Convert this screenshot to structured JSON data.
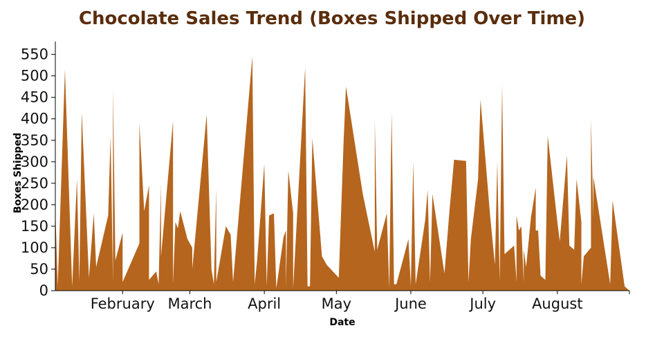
{
  "chart_data": {
    "type": "area",
    "title": "Chocolate Sales Trend (Boxes Shipped Over Time)",
    "xlabel": "Date",
    "ylabel": "Boxes Shipped",
    "color": "#b5651d",
    "title_color": "#5a2d0c",
    "xlim": [
      "2022-01-04",
      "2022-08-31"
    ],
    "ylim": [
      0,
      580
    ],
    "y_ticks": [
      0,
      50,
      100,
      150,
      200,
      250,
      300,
      350,
      400,
      450,
      500,
      550
    ],
    "x_ticks": [
      {
        "date": "2022-02-01",
        "label": "February"
      },
      {
        "date": "2022-03-01",
        "label": "March"
      },
      {
        "date": "2022-04-01",
        "label": "April"
      },
      {
        "date": "2022-05-01",
        "label": "May"
      },
      {
        "date": "2022-06-01",
        "label": "June"
      },
      {
        "date": "2022-07-01",
        "label": "July"
      },
      {
        "date": "2022-08-01",
        "label": "August"
      }
    ],
    "points": [
      [
        "2022-01-04",
        190
      ],
      [
        "2022-01-05",
        10
      ],
      [
        "2022-01-08",
        515
      ],
      [
        "2022-01-11",
        10
      ],
      [
        "2022-01-13",
        260
      ],
      [
        "2022-01-14",
        20
      ],
      [
        "2022-01-15",
        415
      ],
      [
        "2022-01-18",
        30
      ],
      [
        "2022-01-20",
        180
      ],
      [
        "2022-01-21",
        55
      ],
      [
        "2022-01-26",
        175
      ],
      [
        "2022-01-27",
        360
      ],
      [
        "2022-01-28",
        20
      ],
      [
        "2022-01-28",
        470
      ],
      [
        "2022-01-29",
        70
      ],
      [
        "2022-02-01",
        135
      ],
      [
        "2022-02-01",
        20
      ],
      [
        "2022-02-08",
        110
      ],
      [
        "2022-02-08",
        390
      ],
      [
        "2022-02-10",
        185
      ],
      [
        "2022-02-12",
        245
      ],
      [
        "2022-02-12",
        25
      ],
      [
        "2022-02-15",
        45
      ],
      [
        "2022-02-16",
        15
      ],
      [
        "2022-02-17",
        250
      ],
      [
        "2022-02-17",
        80
      ],
      [
        "2022-02-22",
        395
      ],
      [
        "2022-02-22",
        15
      ],
      [
        "2022-02-23",
        160
      ],
      [
        "2022-02-24",
        145
      ],
      [
        "2022-02-25",
        185
      ],
      [
        "2022-02-28",
        120
      ],
      [
        "2022-03-02",
        100
      ],
      [
        "2022-03-02",
        50
      ],
      [
        "2022-03-08",
        410
      ],
      [
        "2022-03-10",
        50
      ],
      [
        "2022-03-11",
        15
      ],
      [
        "2022-03-12",
        240
      ],
      [
        "2022-03-12",
        20
      ],
      [
        "2022-03-16",
        150
      ],
      [
        "2022-03-18",
        130
      ],
      [
        "2022-03-19",
        20
      ],
      [
        "2022-03-27",
        545
      ],
      [
        "2022-03-28",
        15
      ],
      [
        "2022-03-29",
        70
      ],
      [
        "2022-04-01",
        295
      ],
      [
        "2022-04-02",
        10
      ],
      [
        "2022-04-03",
        175
      ],
      [
        "2022-04-05",
        180
      ],
      [
        "2022-04-06",
        5
      ],
      [
        "2022-04-09",
        125
      ],
      [
        "2022-04-10",
        140
      ],
      [
        "2022-04-10",
        5
      ],
      [
        "2022-04-11",
        280
      ],
      [
        "2022-04-13",
        180
      ],
      [
        "2022-04-13",
        5
      ],
      [
        "2022-04-18",
        520
      ],
      [
        "2022-04-19",
        10
      ],
      [
        "2022-04-20",
        10
      ],
      [
        "2022-04-21",
        355
      ],
      [
        "2022-04-25",
        80
      ],
      [
        "2022-04-27",
        60
      ],
      [
        "2022-05-02",
        30
      ],
      [
        "2022-05-04",
        345
      ],
      [
        "2022-05-05",
        475
      ],
      [
        "2022-05-12",
        225
      ],
      [
        "2022-05-17",
        90
      ],
      [
        "2022-05-17",
        400
      ],
      [
        "2022-05-18",
        95
      ],
      [
        "2022-05-22",
        180
      ],
      [
        "2022-05-23",
        5
      ],
      [
        "2022-05-24",
        415
      ],
      [
        "2022-05-25",
        15
      ],
      [
        "2022-05-26",
        15
      ],
      [
        "2022-05-31",
        120
      ],
      [
        "2022-06-01",
        10
      ],
      [
        "2022-06-02",
        300
      ],
      [
        "2022-06-03",
        15
      ],
      [
        "2022-06-07",
        165
      ],
      [
        "2022-06-08",
        235
      ],
      [
        "2022-06-09",
        20
      ],
      [
        "2022-06-10",
        225
      ],
      [
        "2022-06-15",
        40
      ],
      [
        "2022-06-17",
        180
      ],
      [
        "2022-06-19",
        305
      ],
      [
        "2022-06-22",
        303
      ],
      [
        "2022-06-24",
        302
      ],
      [
        "2022-06-25",
        20
      ],
      [
        "2022-06-26",
        120
      ],
      [
        "2022-06-29",
        260
      ],
      [
        "2022-06-30",
        445
      ],
      [
        "2022-07-04",
        175
      ],
      [
        "2022-07-06",
        60
      ],
      [
        "2022-07-07",
        300
      ],
      [
        "2022-07-08",
        20
      ],
      [
        "2022-07-09",
        480
      ],
      [
        "2022-07-10",
        85
      ],
      [
        "2022-07-14",
        105
      ],
      [
        "2022-07-15",
        20
      ],
      [
        "2022-07-15",
        175
      ],
      [
        "2022-07-16",
        140
      ],
      [
        "2022-07-17",
        150
      ],
      [
        "2022-07-18",
        20
      ],
      [
        "2022-07-18",
        95
      ],
      [
        "2022-07-19",
        55
      ],
      [
        "2022-07-21",
        170
      ],
      [
        "2022-07-23",
        240
      ],
      [
        "2022-07-23",
        140
      ],
      [
        "2022-07-24",
        140
      ],
      [
        "2022-07-25",
        35
      ],
      [
        "2022-07-27",
        25
      ],
      [
        "2022-07-28",
        360
      ],
      [
        "2022-08-01",
        160
      ],
      [
        "2022-08-02",
        115
      ],
      [
        "2022-08-05",
        315
      ],
      [
        "2022-08-06",
        105
      ],
      [
        "2022-08-08",
        95
      ],
      [
        "2022-08-09",
        260
      ],
      [
        "2022-08-11",
        160
      ],
      [
        "2022-08-11",
        15
      ],
      [
        "2022-08-12",
        80
      ],
      [
        "2022-08-15",
        100
      ],
      [
        "2022-08-15",
        400
      ],
      [
        "2022-08-16",
        170
      ],
      [
        "2022-08-16",
        265
      ],
      [
        "2022-08-23",
        15
      ],
      [
        "2022-08-24",
        210
      ],
      [
        "2022-08-28",
        50
      ],
      [
        "2022-08-29",
        10
      ],
      [
        "2022-08-31",
        0
      ]
    ]
  }
}
